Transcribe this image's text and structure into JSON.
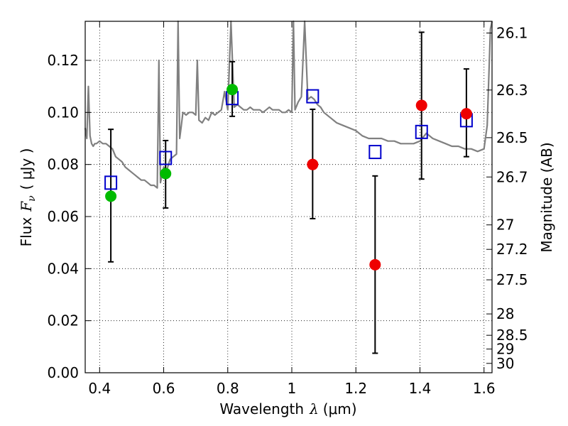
{
  "chart_data": {
    "type": "scatter",
    "xlabel": "Wavelength",
    "xlabel_symbol": "λ",
    "xlabel_unit": "(μm)",
    "ylabel": "Flux",
    "ylabel_symbol": "F",
    "ylabel_subscript": "ν",
    "ylabel_unit": "( μJy )",
    "y2label": "Magnitude (AB)",
    "xlim": [
      0.355,
      1.625
    ],
    "ylim": [
      0.0,
      0.135
    ],
    "xticks": [
      0.4,
      0.6,
      0.8,
      1.0,
      1.2,
      1.4,
      1.6
    ],
    "xtick_labels": [
      "0.4",
      "0.6",
      "0.8",
      "1",
      "1.2",
      "1.4",
      "1.6"
    ],
    "yticks": [
      0.0,
      0.02,
      0.04,
      0.06,
      0.08,
      0.1,
      0.12
    ],
    "ytick_labels": [
      "0.00",
      "0.02",
      "0.04",
      "0.06",
      "0.08",
      "0.10",
      "0.12"
    ],
    "mag_ticks": [
      {
        "label": "26.1",
        "flux": 0.1305
      },
      {
        "label": "26.3",
        "flux": 0.1086
      },
      {
        "label": "26.5",
        "flux": 0.0903
      },
      {
        "label": "26.7",
        "flux": 0.0752
      },
      {
        "label": "27",
        "flux": 0.0568
      },
      {
        "label": "27.2",
        "flux": 0.0474
      },
      {
        "label": "27.5",
        "flux": 0.0357
      },
      {
        "label": "28",
        "flux": 0.0226
      },
      {
        "label": "28.5",
        "flux": 0.0144
      },
      {
        "label": "29",
        "flux": 0.0091
      },
      {
        "label": "30",
        "flux": 0.0036
      }
    ],
    "grid": true,
    "series": [
      {
        "name": "observed (green)",
        "color": "#00bb00",
        "marker": "circle",
        "points": [
          {
            "x": 0.435,
            "y": 0.0678,
            "err_lo": 0.0252,
            "err_hi": 0.0257
          },
          {
            "x": 0.606,
            "y": 0.0765,
            "err_lo": 0.0132,
            "err_hi": 0.0127
          },
          {
            "x": 0.814,
            "y": 0.1088,
            "err_lo": 0.0103,
            "err_hi": 0.0107
          }
        ]
      },
      {
        "name": "observed (red)",
        "color": "#ee0000",
        "marker": "circle",
        "points": [
          {
            "x": 1.065,
            "y": 0.08,
            "err_lo": 0.0208,
            "err_hi": 0.0212
          },
          {
            "x": 1.26,
            "y": 0.0415,
            "err_lo": 0.034,
            "err_hi": 0.0341
          },
          {
            "x": 1.405,
            "y": 0.1027,
            "err_lo": 0.0283,
            "err_hi": 0.0281
          },
          {
            "x": 1.545,
            "y": 0.0995,
            "err_lo": 0.0165,
            "err_hi": 0.0172
          }
        ]
      },
      {
        "name": "model photometry",
        "color": "#0000cc",
        "marker": "open-square",
        "points": [
          {
            "x": 0.435,
            "y": 0.073
          },
          {
            "x": 0.606,
            "y": 0.0825
          },
          {
            "x": 0.814,
            "y": 0.1055
          },
          {
            "x": 1.065,
            "y": 0.1062
          },
          {
            "x": 1.26,
            "y": 0.0848
          },
          {
            "x": 1.405,
            "y": 0.0925
          },
          {
            "x": 1.545,
            "y": 0.097
          }
        ]
      },
      {
        "name": "model spectrum",
        "type": "line",
        "color": "#808080",
        "x": [
          0.355,
          0.36,
          0.365,
          0.37,
          0.375,
          0.38,
          0.385,
          0.39,
          0.4,
          0.41,
          0.42,
          0.43,
          0.44,
          0.45,
          0.46,
          0.47,
          0.48,
          0.49,
          0.5,
          0.51,
          0.52,
          0.53,
          0.54,
          0.55,
          0.56,
          0.57,
          0.58,
          0.585,
          0.59,
          0.6,
          0.61,
          0.62,
          0.63,
          0.64,
          0.645,
          0.65,
          0.655,
          0.66,
          0.67,
          0.68,
          0.69,
          0.7,
          0.705,
          0.71,
          0.72,
          0.73,
          0.74,
          0.75,
          0.76,
          0.77,
          0.78,
          0.79,
          0.8,
          0.81,
          0.82,
          0.83,
          0.84,
          0.85,
          0.86,
          0.87,
          0.88,
          0.89,
          0.9,
          0.91,
          0.92,
          0.93,
          0.94,
          0.95,
          0.96,
          0.97,
          0.98,
          0.99,
          1.0,
          1.005,
          1.01,
          1.02,
          1.03,
          1.04,
          1.05,
          1.06,
          1.07,
          1.08,
          1.09,
          1.1,
          1.12,
          1.14,
          1.16,
          1.18,
          1.2,
          1.22,
          1.24,
          1.26,
          1.28,
          1.3,
          1.32,
          1.34,
          1.36,
          1.38,
          1.4,
          1.42,
          1.44,
          1.46,
          1.48,
          1.5,
          1.52,
          1.54,
          1.56,
          1.58,
          1.6,
          1.61,
          1.62,
          1.625
        ],
        "y": [
          0.094,
          0.09,
          0.11,
          0.091,
          0.088,
          0.087,
          0.088,
          0.088,
          0.089,
          0.088,
          0.088,
          0.087,
          0.086,
          0.083,
          0.082,
          0.081,
          0.079,
          0.078,
          0.077,
          0.076,
          0.075,
          0.074,
          0.074,
          0.073,
          0.072,
          0.072,
          0.071,
          0.12,
          0.073,
          0.079,
          0.078,
          0.082,
          0.083,
          0.084,
          0.135,
          0.09,
          0.095,
          0.1,
          0.099,
          0.1,
          0.1,
          0.099,
          0.12,
          0.097,
          0.096,
          0.098,
          0.097,
          0.1,
          0.099,
          0.1,
          0.101,
          0.108,
          0.101,
          0.135,
          0.102,
          0.103,
          0.102,
          0.101,
          0.101,
          0.102,
          0.101,
          0.101,
          0.101,
          0.1,
          0.101,
          0.102,
          0.101,
          0.101,
          0.101,
          0.1,
          0.1,
          0.101,
          0.1,
          0.135,
          0.101,
          0.104,
          0.106,
          0.135,
          0.105,
          0.106,
          0.105,
          0.103,
          0.102,
          0.1,
          0.098,
          0.096,
          0.095,
          0.094,
          0.093,
          0.091,
          0.09,
          0.09,
          0.09,
          0.089,
          0.089,
          0.088,
          0.088,
          0.088,
          0.089,
          0.092,
          0.09,
          0.089,
          0.088,
          0.087,
          0.087,
          0.086,
          0.086,
          0.085,
          0.086,
          0.095,
          0.132,
          0.135
        ]
      }
    ]
  }
}
